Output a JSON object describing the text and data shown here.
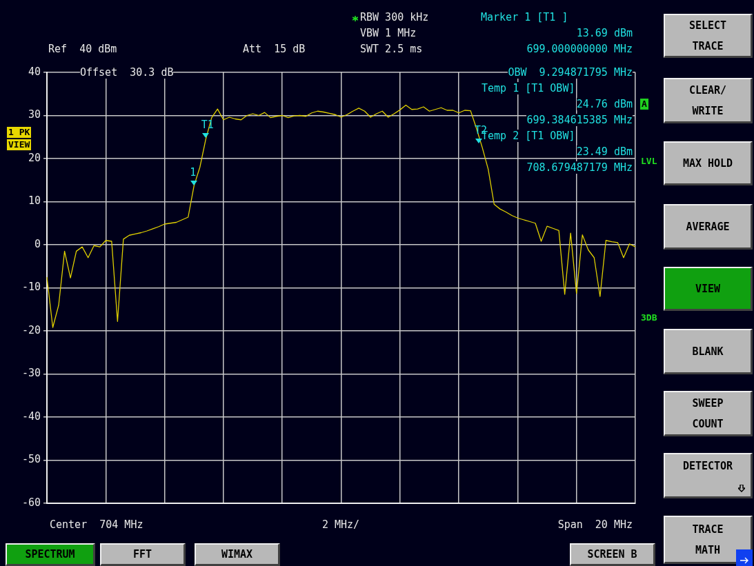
{
  "chart_data": {
    "type": "line",
    "categories": [
      null,
      null,
      null,
      null,
      null,
      null,
      null,
      null,
      null,
      null,
      null,
      null,
      null,
      null,
      null,
      null,
      null,
      null,
      null,
      null,
      null,
      null,
      null,
      null,
      null,
      null,
      null,
      null,
      null,
      null,
      null,
      null,
      null,
      null,
      null,
      null,
      null,
      null,
      null,
      null,
      null,
      null,
      null,
      null,
      null,
      null,
      null,
      null,
      null,
      null,
      null,
      null,
      null,
      null,
      null,
      null,
      null,
      null,
      null,
      null,
      null,
      null,
      null,
      null,
      null,
      null,
      null,
      null,
      null,
      null,
      null,
      null,
      null,
      null,
      null,
      null,
      null,
      null,
      null,
      null,
      null,
      null,
      null,
      null,
      null,
      null,
      null,
      null,
      null,
      null,
      null,
      null,
      null,
      null,
      null,
      null,
      null,
      null,
      null,
      null,
      null
    ],
    "series": [
      {
        "color": "#e0d000",
        "values": [
          -7.5,
          -19.2,
          -14,
          -1.5,
          -7.7,
          -1.5,
          -0.5,
          -3,
          -0.2,
          -0.5,
          1,
          0.8,
          -17.8,
          1.3,
          2.2,
          2.5,
          2.8,
          3.2,
          3.7,
          4.2,
          4.8,
          5,
          5.2,
          5.8,
          6.4,
          13.7,
          18,
          24.5,
          29.5,
          31.5,
          29,
          29.6,
          29.2,
          29,
          30,
          30.4,
          30,
          30.7,
          29.5,
          29.8,
          30,
          29.5,
          29.9,
          30,
          29.8,
          30.6,
          31,
          30.8,
          30.5,
          30.2,
          29.6,
          30.2,
          31,
          31.7,
          31,
          29.6,
          30.4,
          31,
          29.6,
          30.4,
          31.3,
          32.4,
          31.4,
          31.5,
          32,
          31,
          31.4,
          31.8,
          31.2,
          31.2,
          30.6,
          31.2,
          31.1,
          27,
          22.5,
          17.5,
          9.4,
          8.3,
          7.6,
          6.8,
          6.2,
          5.8,
          5.4,
          5,
          0.8,
          4.3,
          3.8,
          3.3,
          -11.5,
          2.7,
          -11.3,
          2.3,
          -1.2,
          -3,
          -12,
          1,
          0.7,
          0.5,
          -3,
          0.2,
          -0.5
        ]
      }
    ],
    "ylim": [
      -60,
      40
    ],
    "yticks": [
      -60,
      -50,
      -40,
      -30,
      -20,
      -10,
      0,
      10,
      20,
      30,
      40
    ],
    "tick_labels": "y",
    "grid": true,
    "legend": false,
    "marker": "none",
    "annotations": [
      "Ref  40 dBm",
      "Att  15 dB",
      "RBW 300 kHz",
      "VBW 1 MHz",
      "SWT 2.5 ms",
      "Marker 1 [T1 ]",
      "13.69 dBm",
      "699.000000000 MHz",
      "Offset  30.3 dB",
      "OBW  9.294871795 MHz",
      "Temp 1 [T1 OBW]",
      "24.76 dBm",
      "699.384615385 MHz",
      "Temp 2 [T1 OBW]",
      "23.49 dBm",
      "708.679487179 MHz",
      "Center  704 MHz",
      "2 MHz/",
      "Span  20 MHz",
      "1 PK",
      "VIEW",
      "A",
      "LVL",
      "3DB",
      "SELECT\nTRACE",
      "CLEAR/\nWRITE",
      "MAX HOLD",
      "AVERAGE",
      "VIEW",
      "BLANK",
      "SWEEP\nCOUNT",
      "DETECTOR",
      "TRACE\nMATH",
      "SPECTRUM",
      "FFT",
      "WIMAX",
      "SCREEN B",
      {
        "text": "1",
        "y": 13.69
      },
      {
        "text": "T1",
        "y": 24.76
      },
      {
        "text": "T2",
        "y": 23.49
      }
    ]
  }
}
